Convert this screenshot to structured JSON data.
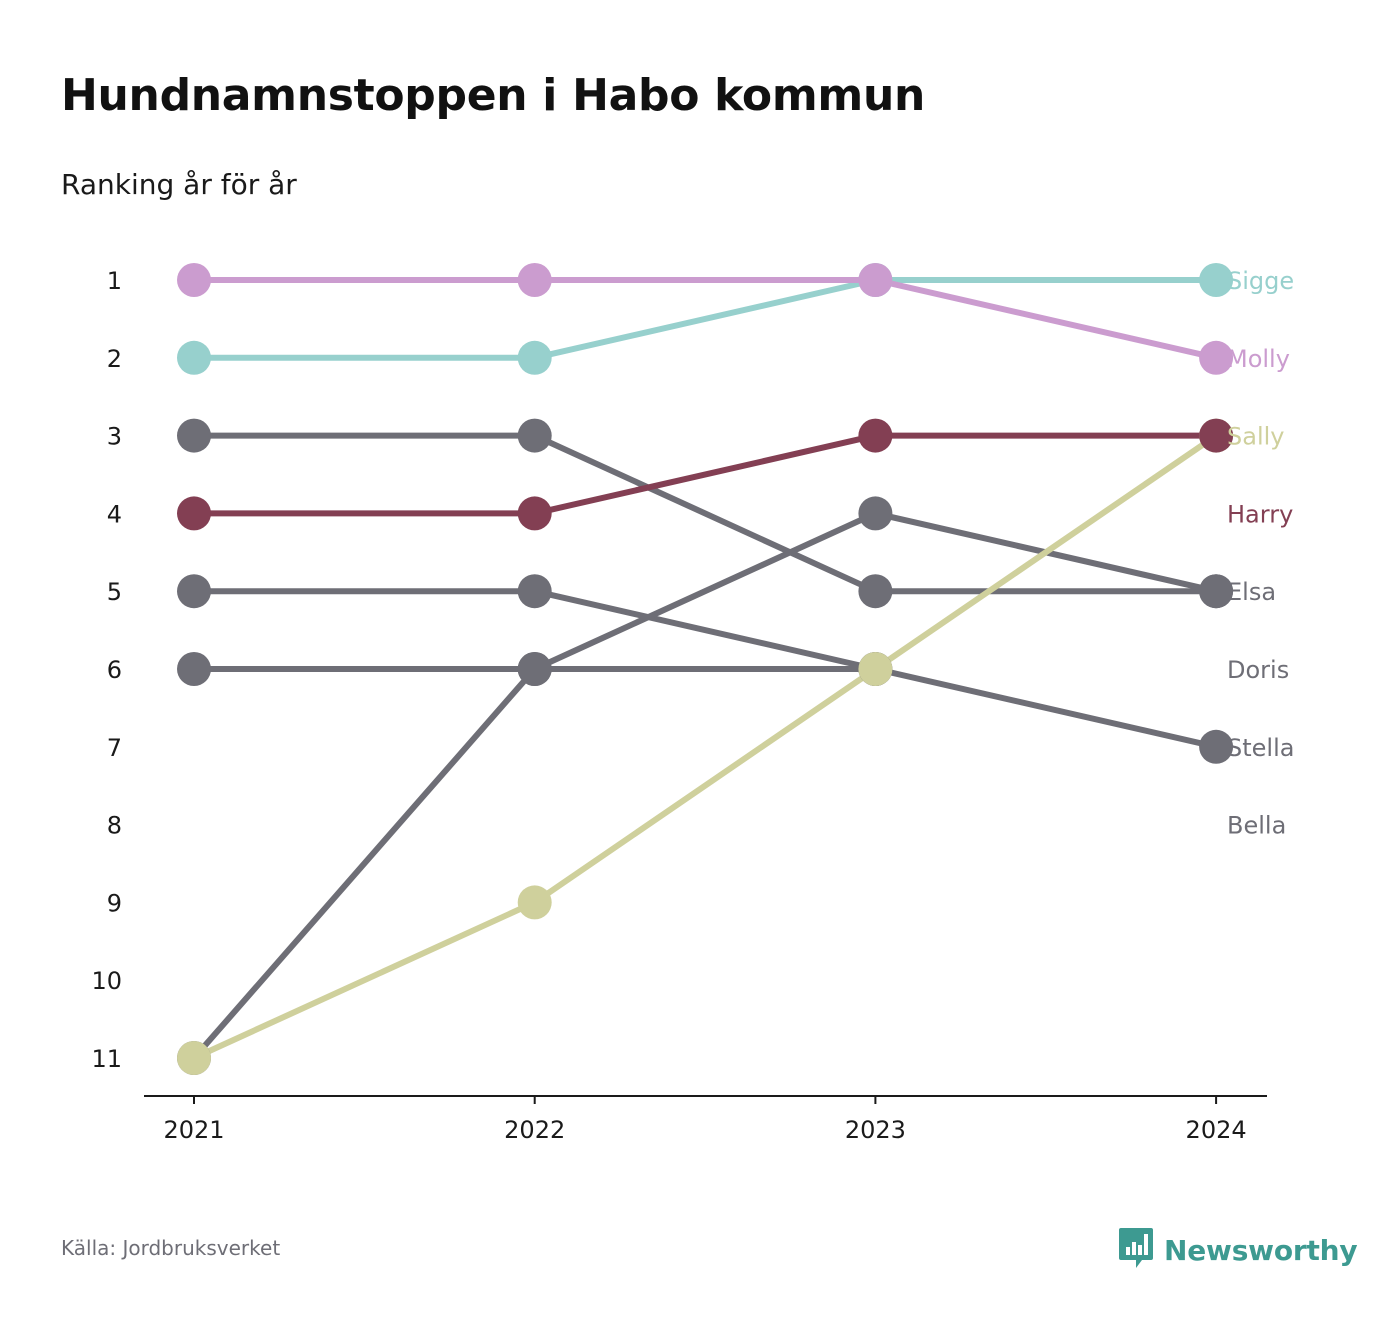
{
  "title": "Hundnamnstoppen i Habo kommun",
  "subtitle": "Ranking år för år",
  "source": "Källa: Jordbruksverket",
  "brand": {
    "name": "Newsworthy",
    "icon": "newsworthy-logo-icon",
    "color": "#3d9a91"
  },
  "chart_data": {
    "type": "line",
    "x": [
      "2021",
      "2022",
      "2023",
      "2024"
    ],
    "y_ticks": [
      1,
      2,
      3,
      4,
      5,
      6,
      7,
      8,
      9,
      10,
      11
    ],
    "y_reversed": true,
    "ylim": [
      1,
      11
    ],
    "grid": false,
    "legend": "labels at right end of lines",
    "series": [
      {
        "name": "Sigge",
        "color": "#97d0cd",
        "ranks": [
          2,
          2,
          1,
          1
        ]
      },
      {
        "name": "Molly",
        "color": "#cb9ccf",
        "ranks": [
          1,
          1,
          1,
          2
        ]
      },
      {
        "name": "Sally",
        "color": "#cfd09c",
        "ranks": [
          11,
          9,
          6,
          3
        ]
      },
      {
        "name": "Harry",
        "color": "#833f53",
        "ranks": [
          4,
          4,
          3,
          3
        ]
      },
      {
        "name": "Elsa",
        "color": "#6e6e76",
        "ranks": [
          3,
          3,
          5,
          5
        ]
      },
      {
        "name": "Doris",
        "color": "#6e6e76",
        "ranks": [
          6,
          6,
          6,
          null
        ]
      },
      {
        "name": "Stella",
        "color": "#6e6e76",
        "ranks": [
          5,
          5,
          6,
          7
        ]
      },
      {
        "name": "Bella",
        "color": "#6e6e76",
        "ranks": [
          11,
          6,
          4,
          5
        ]
      }
    ]
  }
}
